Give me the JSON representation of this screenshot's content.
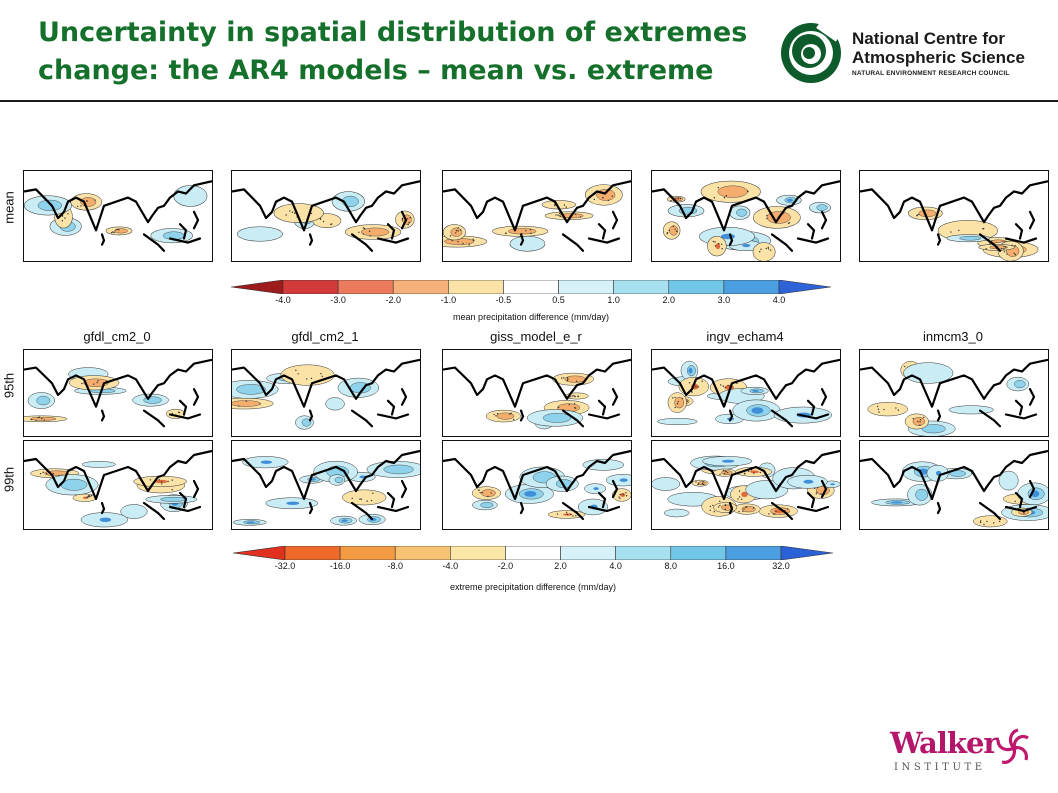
{
  "title": {
    "line1": "Uncertainty in spatial distribution of extremes",
    "line2": "change: the AR4 models – mean vs. extreme"
  },
  "logos": {
    "ncas": {
      "name_line1": "National Centre for",
      "name_line2": "Atmospheric Science",
      "subline": "NATURAL ENVIRONMENT RESEARCH COUNCIL",
      "color": "#0d5a2a"
    },
    "walker": {
      "word": "Walker",
      "subline": "INSTITUTE",
      "color": "#b4166a"
    }
  },
  "row_labels": {
    "mean": "mean",
    "p95": "95th",
    "p99": "99th"
  },
  "models": [
    "gfdl_cm2_0",
    "gfdl_cm2_1",
    "giss_model_e_r",
    "ingv_echam4",
    "inmcm3_0"
  ],
  "mean_colorbar": {
    "ticks": [
      "-4.0",
      "-3.0",
      "-2.0",
      "-1.0",
      "-0.5",
      "0.5",
      "1.0",
      "2.0",
      "3.0",
      "4.0"
    ],
    "title": "mean precipitation difference (mm/day)",
    "colors": [
      "#9e1b1b",
      "#d33b3b",
      "#ec7a5c",
      "#f6b07a",
      "#fbe3a8",
      "#ffffff",
      "#d6f1f7",
      "#a7e1f0",
      "#72c7e8",
      "#4b9fe0",
      "#2e63d8"
    ]
  },
  "extreme_colorbar": {
    "ticks": [
      "-32.0",
      "-16.0",
      "-8.0",
      "-4.0",
      "-2.0",
      "2.0",
      "4.0",
      "8.0",
      "16.0",
      "32.0"
    ],
    "title": "extreme precipitation difference (mm/day)",
    "colors": [
      "#e0301e",
      "#ef6a2a",
      "#f39a45",
      "#f7c272",
      "#fbe7a6",
      "#ffffff",
      "#d6f1f7",
      "#a7e1f0",
      "#72c7e8",
      "#4b9fe0",
      "#2a61d6"
    ]
  },
  "palette": {
    "wet_light": "#c9ecf5",
    "wet_mid": "#8fd2ec",
    "wet_dark": "#3f8ed8",
    "dry_light": "#fbe3a8",
    "dry_mid": "#f4ad6c",
    "dry_dark": "#e06a3a"
  }
}
